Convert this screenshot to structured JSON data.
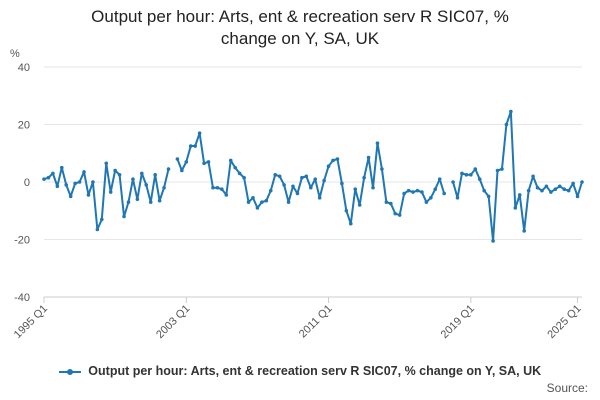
{
  "chart_data": {
    "type": "line",
    "title_line1": "Output per hour: Arts, ent & recreation serv R SIC07, %",
    "title_line2": "change on Y, SA, UK",
    "ylabel": "%",
    "ylim": [
      -40,
      40
    ],
    "yticks": [
      "40",
      "20",
      "0",
      "-20",
      "-40"
    ],
    "xticks": [
      "1995 Q1",
      "2003 Q1",
      "2011 Q1",
      "2019 Q1",
      "2025 Q1"
    ],
    "series": [
      {
        "name": "Output per hour: Arts, ent & recreation serv R SIC07, % change on Y, SA, UK",
        "color": "#1f77b4",
        "x_start": "1995 Q1",
        "values": [
          1,
          1.5,
          3,
          -1.5,
          5,
          -1,
          -5,
          -0.5,
          0,
          3.5,
          -4.5,
          0,
          -16.5,
          -13,
          6.5,
          -3.5,
          4,
          2.5,
          -12,
          -7,
          1,
          -6,
          3,
          -1,
          -7,
          2.5,
          -6.5,
          -2,
          4.5,
          null,
          8,
          4,
          7,
          12.5,
          12.5,
          17,
          6.5,
          7,
          -2,
          -2,
          -2.5,
          -4.5,
          7.5,
          5,
          3,
          1.5,
          -7,
          -5.5,
          -9,
          -7,
          -6.5,
          -3,
          2.5,
          2,
          -1,
          -7,
          -1.5,
          -4,
          1.5,
          2,
          -2,
          1,
          -5.5,
          0.5,
          5.5,
          7.5,
          8,
          -0.5,
          -10,
          -14.5,
          -2.5,
          -8,
          1.5,
          8.5,
          -2,
          13.5,
          4.5,
          -7,
          -7.5,
          -11,
          -11.5,
          -4,
          -3,
          -3.5,
          -3,
          -3.5,
          -7,
          -5.5,
          -2.5,
          1,
          -4,
          null,
          0,
          -5.5,
          3,
          2.5,
          2.5,
          4.5,
          1,
          -3,
          -5,
          -20.5,
          4,
          4.5,
          20,
          24.5,
          -9,
          -4.5,
          -17,
          -3,
          2,
          -2,
          -3,
          -1.5,
          -3.5,
          -2.5,
          -1.5,
          -2.5,
          -3,
          -0.5,
          -5,
          0
        ]
      }
    ]
  },
  "legend_label": "Output per hour: Arts, ent & recreation serv R SIC07, % change on Y, SA, UK",
  "source_label": "Source:"
}
